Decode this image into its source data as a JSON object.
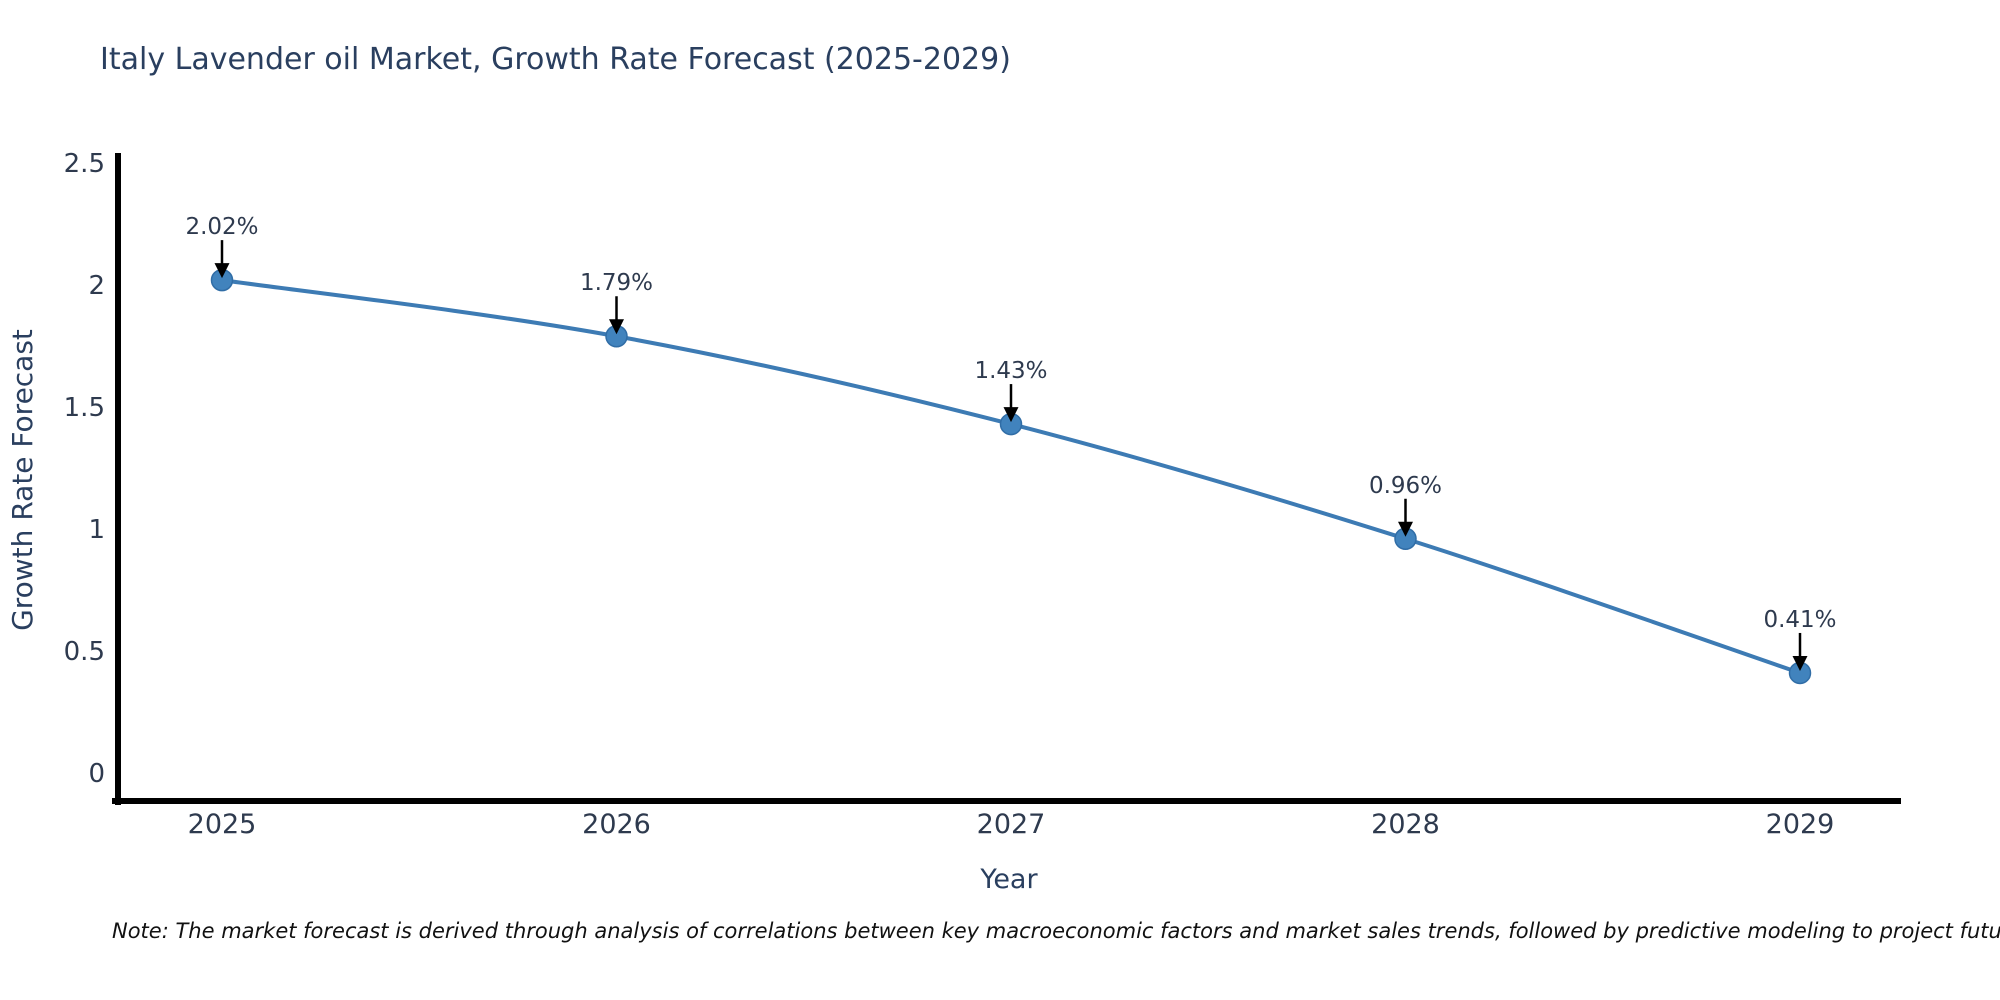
{
  "chart_data": {
    "type": "line",
    "title": "Italy Lavender oil Market, Growth Rate Forecast (2025-2029)",
    "xlabel": "Year",
    "ylabel": "Growth Rate Forecast",
    "x": [
      2025,
      2026,
      2027,
      2028,
      2029
    ],
    "values": [
      2.02,
      1.79,
      1.43,
      0.96,
      0.41
    ],
    "point_labels": [
      "2.02%",
      "1.79%",
      "1.43%",
      "0.96%",
      "0.41%"
    ],
    "xtick_labels": [
      "2025",
      "2026",
      "2027",
      "2028",
      "2029"
    ],
    "yticks": [
      0,
      0.5,
      1,
      1.5,
      2,
      2.5
    ],
    "ytick_labels": [
      "0",
      "0.5",
      "1",
      "1.5",
      "2",
      "2.5"
    ],
    "ylim": [
      0,
      2.5
    ],
    "grid": false,
    "legend": "none",
    "line_shape": "spline",
    "line_color": "#3d7bb4",
    "marker_color": "#4183bd",
    "marker_edge_color": "#306da6",
    "axis_color": "#000000",
    "annotation_arrow_color": "#000000",
    "tick_color": "#2e3a4e",
    "title_color": "#2a3f5f"
  },
  "note": "Note: The market forecast is derived through analysis of correlations between key macroeconomic factors and market sales trends, followed by predictive modeling to project future sales"
}
